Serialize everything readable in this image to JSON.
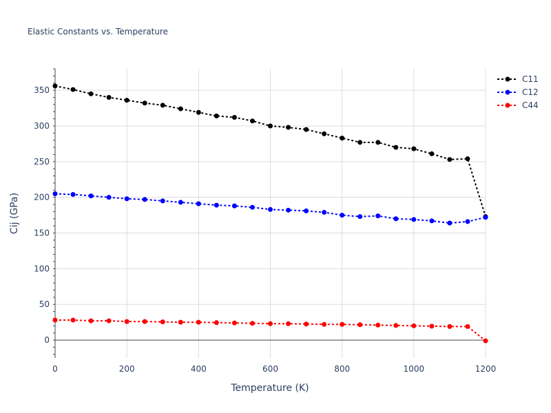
{
  "chart_data": {
    "type": "line",
    "title": "Elastic Constants vs. Temperature",
    "xlabel": "Temperature (K)",
    "ylabel": "Cij (GPa)",
    "xlim": [
      0,
      1200
    ],
    "ylim": [
      -25,
      380
    ],
    "xticks": [
      0,
      200,
      400,
      600,
      800,
      1000,
      1200
    ],
    "yticks": [
      0,
      50,
      100,
      150,
      200,
      250,
      300,
      350
    ],
    "grid": true,
    "legend_position": "top-right",
    "x": [
      0,
      50,
      100,
      150,
      200,
      250,
      300,
      350,
      400,
      450,
      500,
      550,
      600,
      650,
      700,
      750,
      800,
      850,
      900,
      950,
      1000,
      1050,
      1100,
      1150,
      1200
    ],
    "series": [
      {
        "name": "C11",
        "color": "#000000",
        "values": [
          356,
          351,
          345,
          340,
          336,
          332,
          329,
          324,
          319,
          314,
          312,
          307,
          300,
          298,
          295,
          289,
          283,
          277,
          277,
          270,
          268,
          261,
          253,
          254,
          173
        ]
      },
      {
        "name": "C12",
        "color": "#0000ff",
        "values": [
          205,
          204,
          202,
          200,
          198,
          197,
          195,
          193,
          191,
          189,
          188,
          186,
          183,
          182,
          181,
          179,
          175,
          173,
          174,
          170,
          169,
          167,
          164,
          166,
          172
        ]
      },
      {
        "name": "C44",
        "color": "#ff0000",
        "values": [
          28,
          28,
          27,
          27,
          26,
          26,
          25.5,
          25,
          25,
          24.5,
          24,
          23.5,
          23,
          23,
          22.5,
          22,
          22,
          21.5,
          21,
          20.5,
          20,
          19.5,
          19,
          19,
          -1
        ]
      }
    ]
  }
}
